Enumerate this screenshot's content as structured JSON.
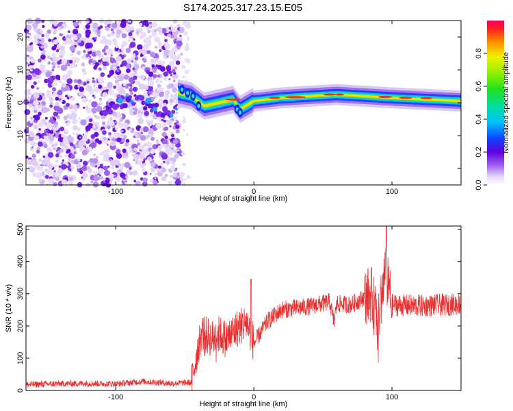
{
  "title": "S174.2025.317.23.15.E05",
  "chart_data": [
    {
      "type": "heatmap",
      "name": "spectrogram",
      "xlabel": "Height of straight line (km)",
      "ylabel": "Frequency (Hz)",
      "xlim": [
        -165,
        150
      ],
      "ylim": [
        -25,
        25
      ],
      "xticks": [
        -100,
        0,
        100
      ],
      "yticks": [
        -20,
        -10,
        0,
        10,
        20
      ],
      "colorbar": {
        "label": "Normalized spectral amplitude",
        "range": [
          0,
          1
        ],
        "ticks": [
          0.0,
          0.2,
          0.4,
          0.6,
          0.8
        ]
      },
      "ridge": [
        {
          "x": -55,
          "y": 3
        },
        {
          "x": -45,
          "y": 2
        },
        {
          "x": -36,
          "y": -1
        },
        {
          "x": -25,
          "y": 0
        },
        {
          "x": -15,
          "y": 1
        },
        {
          "x": -10,
          "y": -2
        },
        {
          "x": 0,
          "y": 0.5
        },
        {
          "x": 20,
          "y": 1.5
        },
        {
          "x": 60,
          "y": 2.5
        },
        {
          "x": 100,
          "y": 1.5
        },
        {
          "x": 150,
          "y": 0.5
        }
      ]
    },
    {
      "type": "line",
      "name": "snr",
      "xlabel": "Height of straight line (km)",
      "ylabel": "SNR (10 * v/v)",
      "xlim": [
        -165,
        150
      ],
      "ylim": [
        0,
        510
      ],
      "xticks": [
        -100,
        0,
        100
      ],
      "yticks": [
        0,
        100,
        200,
        300,
        400,
        500
      ],
      "color": "#e83030",
      "x": [
        -165,
        -150,
        -120,
        -100,
        -80,
        -60,
        -45,
        -42,
        -38,
        -30,
        -25,
        -20,
        -10,
        -5,
        0,
        10,
        20,
        40,
        55,
        58,
        60,
        70,
        85,
        90,
        95,
        100,
        120,
        150
      ],
      "y": [
        18,
        20,
        22,
        20,
        28,
        22,
        25,
        100,
        180,
        160,
        175,
        160,
        200,
        210,
        145,
        215,
        250,
        260,
        275,
        210,
        270,
        265,
        300,
        200,
        370,
        265,
        262,
        268
      ]
    }
  ]
}
